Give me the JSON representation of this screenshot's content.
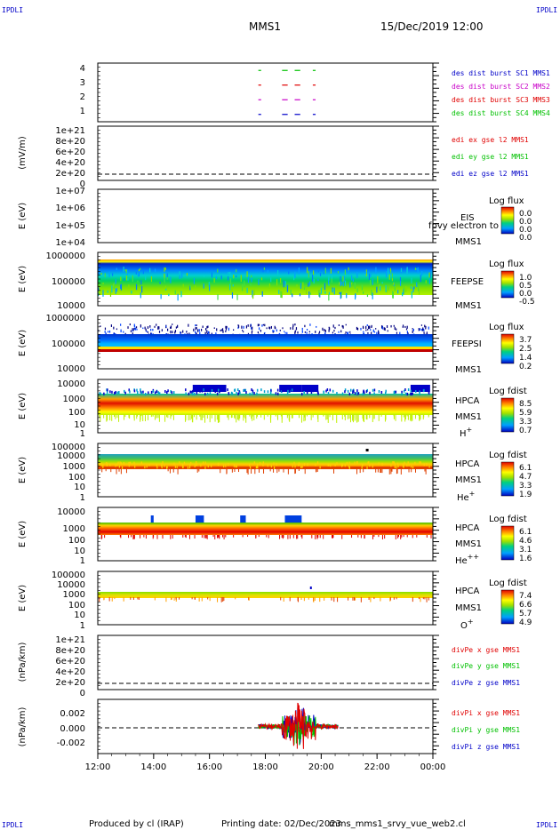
{
  "header": {
    "left_badge": "IPDLI",
    "right_badge": "IPDLI",
    "spacecraft": "MMS1",
    "datetime": "15/Dec/2019 12:00"
  },
  "footer": {
    "left_badge": "IPDLI",
    "right_badge": "IPDLI",
    "produced_by": "Produced by cl (IRAP)",
    "printing_date": "Printing date: 02/Dec/2023",
    "filename": "mms_mms1_srvy_vue_web2.cl"
  },
  "colors": {
    "blue": "#0000c8",
    "magenta": "#c800c8",
    "red": "#e00000",
    "green": "#00c000",
    "black": "#000000"
  },
  "chart_data": [
    {
      "type": "line",
      "panel": "burst",
      "y_ticks": [
        "4",
        "3",
        "2",
        "1"
      ],
      "ylim": [
        0.5,
        4.5
      ],
      "legend": [
        {
          "label": "des dist burst SC1 MMS1",
          "color": "#0000c8"
        },
        {
          "label": "des dist burst SC2 MMS2",
          "color": "#c800c8"
        },
        {
          "label": "des dist burst SC3 MMS3",
          "color": "#e00000"
        },
        {
          "label": "des dist burst SC4 MMS4",
          "color": "#00c000"
        }
      ],
      "series": [
        {
          "level": 1,
          "color": "#0000c8",
          "segments": [
            [
              17.75,
              17.85
            ],
            [
              18.6,
              18.8
            ],
            [
              19.05,
              19.25
            ],
            [
              19.7,
              19.8
            ]
          ]
        },
        {
          "level": 2,
          "color": "#c800c8",
          "segments": [
            [
              17.75,
              17.85
            ],
            [
              18.6,
              18.8
            ],
            [
              19.05,
              19.25
            ],
            [
              19.7,
              19.8
            ]
          ]
        },
        {
          "level": 3,
          "color": "#e00000",
          "segments": [
            [
              17.75,
              17.85
            ],
            [
              18.6,
              18.8
            ],
            [
              19.05,
              19.25
            ],
            [
              19.7,
              19.8
            ]
          ]
        },
        {
          "level": 4,
          "color": "#00c000",
          "segments": [
            [
              17.75,
              17.85
            ],
            [
              18.6,
              18.8
            ],
            [
              19.05,
              19.25
            ],
            [
              19.7,
              19.8
            ]
          ]
        }
      ]
    },
    {
      "type": "line",
      "panel": "edi",
      "ylabel": "(mV/m)",
      "y_ticks": [
        "1e+21",
        "8e+20",
        "6e+20",
        "4e+20",
        "2e+20",
        "0"
      ],
      "legend": [
        {
          "label": "edi ex gse l2 MMS1",
          "color": "#e00000"
        },
        {
          "label": "edi ey gse l2 MMS1",
          "color": "#00c000"
        },
        {
          "label": "edi ez gse l2 MMS1",
          "color": "#0000c8"
        }
      ]
    },
    {
      "type": "heatmap",
      "panel": "eis",
      "ylabel": "E (eV)",
      "y_ticks": [
        "1e+07",
        "1e+06",
        "1e+05",
        "1e+04"
      ],
      "instrument": "EIS",
      "extra_label": "fpvy electron to",
      "spacecraft": "MMS1",
      "colorbar_title": "Log flux",
      "colorbar_ticks": [
        "0.0",
        "0.0",
        "0.0",
        "0.0"
      ]
    },
    {
      "type": "heatmap",
      "panel": "feepse",
      "ylabel": "E (eV)",
      "y_ticks": [
        "1000000",
        "100000",
        "10000"
      ],
      "instrument": "FEEPSE",
      "spacecraft": "MMS1",
      "colorbar_title": "Log flux",
      "colorbar_ticks": [
        "1.0",
        "0.5",
        "0.0",
        "-0.5"
      ]
    },
    {
      "type": "heatmap",
      "panel": "feepsi",
      "ylabel": "E (eV)",
      "y_ticks": [
        "1000000",
        "100000",
        "10000"
      ],
      "instrument": "FEEPSI",
      "spacecraft": "MMS1",
      "colorbar_title": "Log flux",
      "colorbar_ticks": [
        "3.7",
        "2.5",
        "1.4",
        "0.2"
      ]
    },
    {
      "type": "heatmap",
      "panel": "hpca_h",
      "ylabel": "E (eV)",
      "y_ticks": [
        "10000",
        "1000",
        "100",
        "10",
        "1"
      ],
      "instrument": "HPCA",
      "spacecraft": "MMS1",
      "species": "H",
      "species_sup": "+",
      "colorbar_title": "Log fdist",
      "colorbar_ticks": [
        "8.5",
        "5.9",
        "3.3",
        "0.7"
      ]
    },
    {
      "type": "heatmap",
      "panel": "hpca_he",
      "ylabel": "E (eV)",
      "y_ticks": [
        "100000",
        "10000",
        "1000",
        "100",
        "10",
        "1"
      ],
      "instrument": "HPCA",
      "spacecraft": "MMS1",
      "species": "He",
      "species_sup": "+",
      "colorbar_title": "Log fdist",
      "colorbar_ticks": [
        "6.1",
        "4.7",
        "3.3",
        "1.9"
      ]
    },
    {
      "type": "heatmap",
      "panel": "hpca_hepp",
      "ylabel": "E (eV)",
      "y_ticks": [
        "10000",
        "1000",
        "100",
        "10",
        "1"
      ],
      "instrument": "HPCA",
      "spacecraft": "MMS1",
      "species": "He",
      "species_sup": "++",
      "colorbar_title": "Log fdist",
      "colorbar_ticks": [
        "6.1",
        "4.6",
        "3.1",
        "1.6"
      ]
    },
    {
      "type": "heatmap",
      "panel": "hpca_o",
      "ylabel": "E (eV)",
      "y_ticks": [
        "100000",
        "10000",
        "1000",
        "100",
        "10",
        "1"
      ],
      "instrument": "HPCA",
      "spacecraft": "MMS1",
      "species": "O",
      "species_sup": "+",
      "colorbar_title": "Log fdist",
      "colorbar_ticks": [
        "7.4",
        "6.6",
        "5.7",
        "4.9"
      ]
    },
    {
      "type": "line",
      "panel": "divpe",
      "ylabel": "(nPa/km)",
      "y_ticks": [
        "1e+21",
        "8e+20",
        "6e+20",
        "4e+20",
        "2e+20",
        "0"
      ],
      "legend": [
        {
          "label": "divPe x gse MMS1",
          "color": "#e00000"
        },
        {
          "label": "divPe y gse MMS1",
          "color": "#00c000"
        },
        {
          "label": "divPe z gse MMS1",
          "color": "#0000c8"
        }
      ]
    },
    {
      "type": "line",
      "panel": "divpi",
      "ylabel": "(nPa/km)",
      "y_ticks": [
        "0.002",
        "0.000",
        "-0.002"
      ],
      "ylim": [
        -0.003,
        0.003
      ],
      "legend": [
        {
          "label": "divPi x gse MMS1",
          "color": "#e00000"
        },
        {
          "label": "divPi y gse MMS1",
          "color": "#00c000"
        },
        {
          "label": "divPi z gse MMS1",
          "color": "#0000c8"
        }
      ],
      "active_range": [
        17.75,
        20.6
      ]
    }
  ],
  "x_axis": {
    "range": [
      12,
      24
    ],
    "ticks": [
      {
        "value": 12,
        "label": "12:00"
      },
      {
        "value": 14,
        "label": "14:00"
      },
      {
        "value": 16,
        "label": "16:00"
      },
      {
        "value": 18,
        "label": "18:00"
      },
      {
        "value": 20,
        "label": "20:00"
      },
      {
        "value": 22,
        "label": "22:00"
      },
      {
        "value": 24,
        "label": "00:00"
      }
    ]
  }
}
